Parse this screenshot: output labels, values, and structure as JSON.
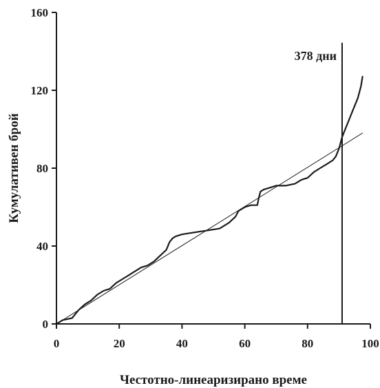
{
  "chart_data": {
    "type": "line",
    "title": "",
    "xlabel": "Честотно-линеаризирано време",
    "ylabel": "Кумулативен брой",
    "xlim": [
      0,
      100
    ],
    "ylim": [
      0,
      160
    ],
    "x_ticks": [
      "0",
      "20",
      "40",
      "60",
      "80",
      "100"
    ],
    "y_ticks": [
      "0",
      "40",
      "80",
      "120",
      "160"
    ],
    "grid": false,
    "legend": "none",
    "series": [
      {
        "style": "step-like thick line",
        "color": "#1a1a1a",
        "x": [
          0,
          2,
          5,
          7,
          9,
          11,
          13,
          15,
          17,
          19,
          21,
          23,
          25,
          27,
          29,
          31,
          33,
          35,
          36,
          37,
          38,
          40,
          44,
          48,
          52,
          55,
          57,
          58,
          59,
          60,
          62,
          64,
          64.5,
          65,
          66,
          68,
          70,
          73,
          76,
          78,
          80,
          82,
          84,
          86,
          88,
          89,
          90,
          91,
          92,
          93,
          94,
          95,
          96,
          97,
          97.5
        ],
        "y": [
          0,
          2,
          3,
          7,
          10,
          12,
          15,
          17,
          18,
          21,
          23,
          25,
          27,
          29,
          30,
          32,
          35,
          38,
          42,
          44,
          45,
          46,
          47,
          48,
          49,
          52,
          55,
          58,
          59,
          60,
          61,
          61,
          65,
          68,
          69,
          70,
          71,
          71,
          72,
          74,
          75,
          78,
          80,
          82,
          84,
          86,
          90,
          96,
          100,
          104,
          108,
          112,
          116,
          122,
          127
        ]
      },
      {
        "style": "thin straight line",
        "color": "#1a1a1a",
        "x": [
          0,
          97.5
        ],
        "y": [
          0,
          98
        ]
      }
    ],
    "annotations": [
      {
        "type": "vertical-line",
        "x": 91,
        "label": "378 дни"
      }
    ]
  }
}
